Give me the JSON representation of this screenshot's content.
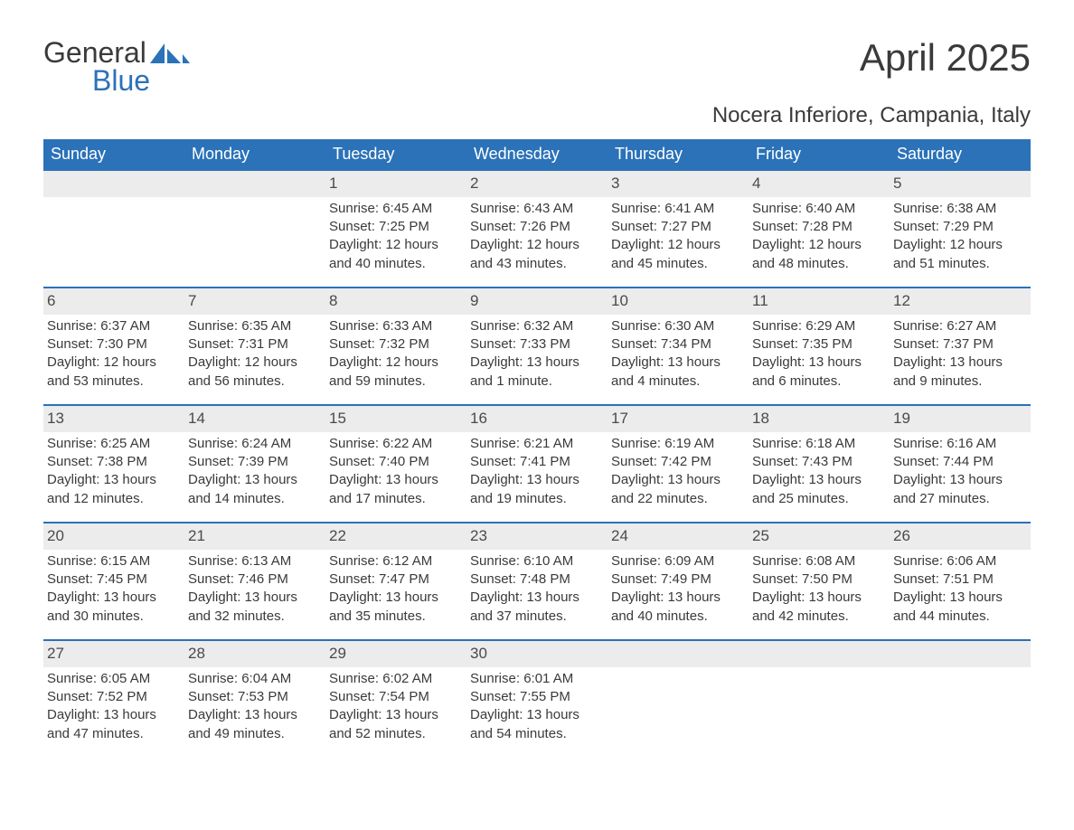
{
  "logo": {
    "line1": "General",
    "line2": "Blue"
  },
  "title": "April 2025",
  "location": "Nocera Inferiore, Campania, Italy",
  "colors": {
    "header_bg": "#2b72b8",
    "header_text": "#ffffff",
    "row_border": "#2b72b8",
    "daynum_bg": "#ececec",
    "text": "#3a3a3a",
    "logo_blue": "#2b72b8",
    "background": "#ffffff"
  },
  "calendar": {
    "day_headers": [
      "Sunday",
      "Monday",
      "Tuesday",
      "Wednesday",
      "Thursday",
      "Friday",
      "Saturday"
    ],
    "header_fontsize": 18,
    "cell_fontsize": 15,
    "weeks": [
      [
        null,
        null,
        {
          "n": "1",
          "sr": "6:45 AM",
          "ss": "7:25 PM",
          "dl": "12 hours and 40 minutes."
        },
        {
          "n": "2",
          "sr": "6:43 AM",
          "ss": "7:26 PM",
          "dl": "12 hours and 43 minutes."
        },
        {
          "n": "3",
          "sr": "6:41 AM",
          "ss": "7:27 PM",
          "dl": "12 hours and 45 minutes."
        },
        {
          "n": "4",
          "sr": "6:40 AM",
          "ss": "7:28 PM",
          "dl": "12 hours and 48 minutes."
        },
        {
          "n": "5",
          "sr": "6:38 AM",
          "ss": "7:29 PM",
          "dl": "12 hours and 51 minutes."
        }
      ],
      [
        {
          "n": "6",
          "sr": "6:37 AM",
          "ss": "7:30 PM",
          "dl": "12 hours and 53 minutes."
        },
        {
          "n": "7",
          "sr": "6:35 AM",
          "ss": "7:31 PM",
          "dl": "12 hours and 56 minutes."
        },
        {
          "n": "8",
          "sr": "6:33 AM",
          "ss": "7:32 PM",
          "dl": "12 hours and 59 minutes."
        },
        {
          "n": "9",
          "sr": "6:32 AM",
          "ss": "7:33 PM",
          "dl": "13 hours and 1 minute."
        },
        {
          "n": "10",
          "sr": "6:30 AM",
          "ss": "7:34 PM",
          "dl": "13 hours and 4 minutes."
        },
        {
          "n": "11",
          "sr": "6:29 AM",
          "ss": "7:35 PM",
          "dl": "13 hours and 6 minutes."
        },
        {
          "n": "12",
          "sr": "6:27 AM",
          "ss": "7:37 PM",
          "dl": "13 hours and 9 minutes."
        }
      ],
      [
        {
          "n": "13",
          "sr": "6:25 AM",
          "ss": "7:38 PM",
          "dl": "13 hours and 12 minutes."
        },
        {
          "n": "14",
          "sr": "6:24 AM",
          "ss": "7:39 PM",
          "dl": "13 hours and 14 minutes."
        },
        {
          "n": "15",
          "sr": "6:22 AM",
          "ss": "7:40 PM",
          "dl": "13 hours and 17 minutes."
        },
        {
          "n": "16",
          "sr": "6:21 AM",
          "ss": "7:41 PM",
          "dl": "13 hours and 19 minutes."
        },
        {
          "n": "17",
          "sr": "6:19 AM",
          "ss": "7:42 PM",
          "dl": "13 hours and 22 minutes."
        },
        {
          "n": "18",
          "sr": "6:18 AM",
          "ss": "7:43 PM",
          "dl": "13 hours and 25 minutes."
        },
        {
          "n": "19",
          "sr": "6:16 AM",
          "ss": "7:44 PM",
          "dl": "13 hours and 27 minutes."
        }
      ],
      [
        {
          "n": "20",
          "sr": "6:15 AM",
          "ss": "7:45 PM",
          "dl": "13 hours and 30 minutes."
        },
        {
          "n": "21",
          "sr": "6:13 AM",
          "ss": "7:46 PM",
          "dl": "13 hours and 32 minutes."
        },
        {
          "n": "22",
          "sr": "6:12 AM",
          "ss": "7:47 PM",
          "dl": "13 hours and 35 minutes."
        },
        {
          "n": "23",
          "sr": "6:10 AM",
          "ss": "7:48 PM",
          "dl": "13 hours and 37 minutes."
        },
        {
          "n": "24",
          "sr": "6:09 AM",
          "ss": "7:49 PM",
          "dl": "13 hours and 40 minutes."
        },
        {
          "n": "25",
          "sr": "6:08 AM",
          "ss": "7:50 PM",
          "dl": "13 hours and 42 minutes."
        },
        {
          "n": "26",
          "sr": "6:06 AM",
          "ss": "7:51 PM",
          "dl": "13 hours and 44 minutes."
        }
      ],
      [
        {
          "n": "27",
          "sr": "6:05 AM",
          "ss": "7:52 PM",
          "dl": "13 hours and 47 minutes."
        },
        {
          "n": "28",
          "sr": "6:04 AM",
          "ss": "7:53 PM",
          "dl": "13 hours and 49 minutes."
        },
        {
          "n": "29",
          "sr": "6:02 AM",
          "ss": "7:54 PM",
          "dl": "13 hours and 52 minutes."
        },
        {
          "n": "30",
          "sr": "6:01 AM",
          "ss": "7:55 PM",
          "dl": "13 hours and 54 minutes."
        },
        null,
        null,
        null
      ]
    ]
  },
  "labels": {
    "sunrise": "Sunrise: ",
    "sunset": "Sunset: ",
    "daylight": "Daylight: "
  }
}
